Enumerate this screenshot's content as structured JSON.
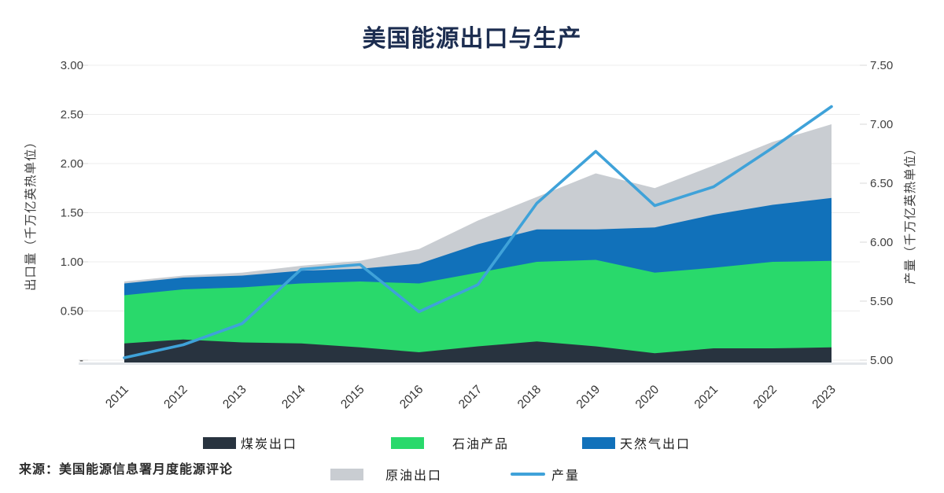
{
  "title": "美国能源出口与生产",
  "source": "来源：美国能源信息署月度能源评论",
  "chart_data": {
    "type": "area",
    "stacked": true,
    "grid": true,
    "legend_position": "bottom",
    "categories": [
      "2011",
      "2012",
      "2013",
      "2014",
      "2015",
      "2016",
      "2017",
      "2018",
      "2019",
      "2020",
      "2021",
      "2022",
      "2023"
    ],
    "stacked_series": [
      {
        "name": "煤炭出口",
        "color": "#28333F",
        "values": [
          0.17,
          0.21,
          0.18,
          0.17,
          0.13,
          0.08,
          0.14,
          0.19,
          0.14,
          0.07,
          0.12,
          0.12,
          0.13
        ]
      },
      {
        "name": "石油产品",
        "color": "#29D96B",
        "values": [
          0.49,
          0.51,
          0.56,
          0.61,
          0.67,
          0.7,
          0.75,
          0.81,
          0.88,
          0.82,
          0.82,
          0.88,
          0.88
        ]
      },
      {
        "name": "天然气出口",
        "color": "#1171BA",
        "values": [
          0.12,
          0.12,
          0.12,
          0.13,
          0.13,
          0.2,
          0.29,
          0.33,
          0.31,
          0.46,
          0.54,
          0.58,
          0.64
        ]
      },
      {
        "name": "原油出口",
        "color": "#C9CDD2",
        "values": [
          0.02,
          0.02,
          0.03,
          0.05,
          0.08,
          0.15,
          0.24,
          0.33,
          0.57,
          0.4,
          0.5,
          0.64,
          0.75
        ]
      }
    ],
    "line_series": {
      "name": "产量",
      "color": "#3FA2D9",
      "axis": "right",
      "values": [
        5.02,
        5.13,
        5.31,
        5.77,
        5.81,
        5.41,
        5.64,
        6.33,
        6.77,
        6.31,
        6.47,
        6.8,
        7.15
      ]
    },
    "left_axis": {
      "title": "出口量（千万亿英热单位）",
      "range": [
        0,
        3
      ],
      "ticks": [
        0,
        0.5,
        1.0,
        1.5,
        2.0,
        2.5,
        3.0
      ],
      "tick_labels": [
        "-",
        "0.50",
        "1.00",
        "1.50",
        "2.00",
        "2.50",
        "3.00"
      ]
    },
    "right_axis": {
      "title": "产量（千万亿英热单位）",
      "range": [
        5,
        7.5
      ],
      "ticks": [
        5.0,
        5.5,
        6.0,
        6.5,
        7.0,
        7.5
      ],
      "tick_labels": [
        "5.00",
        "5.50",
        "6.00",
        "6.50",
        "7.00",
        "7.50"
      ]
    }
  }
}
